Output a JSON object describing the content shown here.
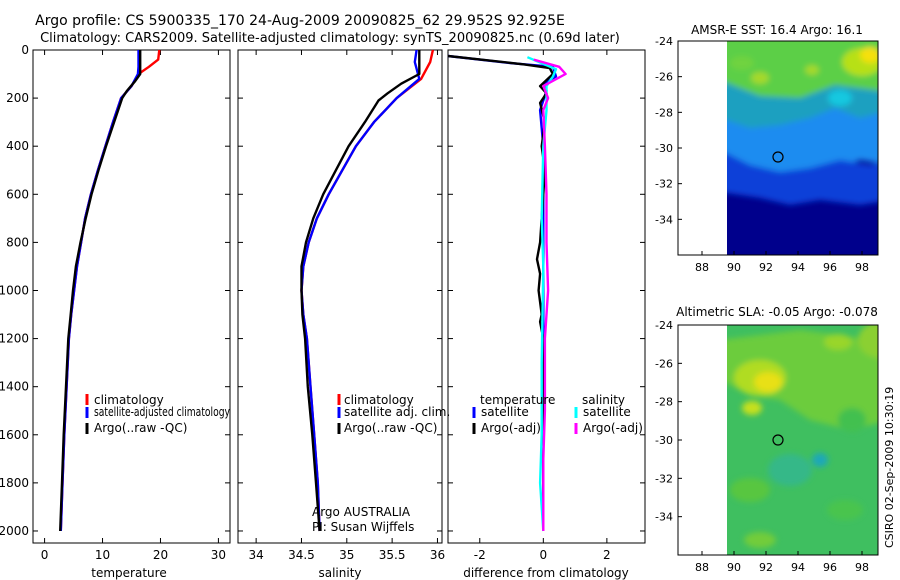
{
  "title_line1": "Argo profile: CS 5900335_170 24-Aug-2009 20090825_62 29.952S 92.925E",
  "title_line2": "Climatology: CARS2009. Satellite-adjusted climatology: synTS_20090825.nc (0.69d later)",
  "side_stamp": "CSIRO 02-Sep-2009 10:30:19",
  "colors": {
    "red": "#ff0000",
    "blue": "#0000ff",
    "black": "#000000",
    "cyan": "#00ffff",
    "magenta": "#ff00ff"
  },
  "chart_data": [
    {
      "type": "line",
      "name": "temperature",
      "xlabel": "temperature",
      "xlim": [
        -2,
        32
      ],
      "ylim": [
        2050,
        0
      ],
      "xticks": [
        "0",
        "10",
        "20",
        "30"
      ],
      "yticks": [
        "0",
        "200",
        "400",
        "600",
        "800",
        "1000",
        "1200",
        "1400",
        "1600",
        "1800",
        "2000"
      ],
      "legend": [
        "climatology",
        "satellite-adjusted climatology",
        "Argo(..raw -QC)"
      ],
      "series": [
        {
          "name": "climatology",
          "color": "#ff0000",
          "points": [
            [
              19.8,
              0
            ],
            [
              19.6,
              40
            ],
            [
              18,
              70
            ],
            [
              16.2,
              100
            ],
            [
              15,
              150
            ],
            [
              13.2,
              200
            ],
            [
              11.8,
              300
            ],
            [
              10.5,
              400
            ],
            [
              9.2,
              500
            ],
            [
              8,
              600
            ],
            [
              7,
              700
            ],
            [
              6.3,
              800
            ],
            [
              5.6,
              900
            ],
            [
              5.1,
              1000
            ],
            [
              4.6,
              1100
            ],
            [
              4.2,
              1200
            ],
            [
              3.8,
              1400
            ],
            [
              3.4,
              1600
            ],
            [
              3.1,
              1800
            ],
            [
              2.8,
              2000
            ]
          ]
        },
        {
          "name": "satellite-adjusted climatology",
          "color": "#0000ff",
          "points": [
            [
              16.2,
              0
            ],
            [
              16.2,
              70
            ],
            [
              16.1,
              100
            ],
            [
              15,
              150
            ],
            [
              13.2,
              200
            ],
            [
              11.8,
              300
            ],
            [
              10.5,
              400
            ],
            [
              9.2,
              500
            ],
            [
              8,
              600
            ],
            [
              7,
              700
            ],
            [
              6.3,
              800
            ],
            [
              5.6,
              900
            ],
            [
              5.1,
              1000
            ],
            [
              4.6,
              1100
            ],
            [
              4.2,
              1200
            ],
            [
              3.8,
              1400
            ],
            [
              3.4,
              1600
            ],
            [
              3.1,
              1800
            ],
            [
              2.8,
              2000
            ]
          ]
        },
        {
          "name": "Argo(..raw -QC)",
          "color": "#000000",
          "points": [
            [
              16.5,
              0
            ],
            [
              16.5,
              100
            ],
            [
              15.6,
              130
            ],
            [
              14.2,
              170
            ],
            [
              13.4,
              200
            ],
            [
              12,
              300
            ],
            [
              10.6,
              400
            ],
            [
              9.3,
              500
            ],
            [
              8.1,
              600
            ],
            [
              7.1,
              700
            ],
            [
              6.2,
              800
            ],
            [
              5.4,
              900
            ],
            [
              4.9,
              1000
            ],
            [
              4.5,
              1100
            ],
            [
              4.1,
              1200
            ],
            [
              3.7,
              1400
            ],
            [
              3.3,
              1600
            ],
            [
              3,
              1800
            ],
            [
              2.7,
              2000
            ]
          ]
        }
      ]
    },
    {
      "type": "line",
      "name": "salinity",
      "xlabel": "salinity",
      "xlim": [
        33.8,
        36.05
      ],
      "ylim": [
        2050,
        0
      ],
      "xticks": [
        "34",
        "34.5",
        "35",
        "35.5",
        "36"
      ],
      "legend": [
        "climatology",
        "satellite adj. clim.",
        "Argo(..raw -QC)"
      ],
      "annotations": [
        "Argo AUSTRALIA",
        "PI: Susan Wijffels"
      ],
      "series": [
        {
          "name": "climatology",
          "color": "#ff0000",
          "points": [
            [
              35.95,
              0
            ],
            [
              35.92,
              50
            ],
            [
              35.82,
              120
            ],
            [
              35.55,
              200
            ],
            [
              35.3,
              300
            ],
            [
              35.1,
              400
            ],
            [
              34.95,
              500
            ],
            [
              34.8,
              600
            ],
            [
              34.67,
              700
            ],
            [
              34.58,
              800
            ],
            [
              34.52,
              900
            ],
            [
              34.5,
              1000
            ],
            [
              34.52,
              1100
            ],
            [
              34.56,
              1200
            ],
            [
              34.6,
              1400
            ],
            [
              34.64,
              1600
            ],
            [
              34.68,
              1800
            ],
            [
              34.7,
              2000
            ]
          ]
        },
        {
          "name": "satellite adj. clim.",
          "color": "#0000ff",
          "points": [
            [
              35.77,
              0
            ],
            [
              35.75,
              50
            ],
            [
              35.8,
              120
            ],
            [
              35.55,
              200
            ],
            [
              35.3,
              300
            ],
            [
              35.1,
              400
            ],
            [
              34.95,
              500
            ],
            [
              34.8,
              600
            ],
            [
              34.67,
              700
            ],
            [
              34.58,
              800
            ],
            [
              34.52,
              900
            ],
            [
              34.5,
              1000
            ],
            [
              34.52,
              1100
            ],
            [
              34.56,
              1200
            ],
            [
              34.6,
              1400
            ],
            [
              34.64,
              1600
            ],
            [
              34.68,
              1800
            ],
            [
              34.7,
              2000
            ]
          ]
        },
        {
          "name": "Argo(..raw -QC)",
          "color": "#000000",
          "points": [
            [
              35.8,
              0
            ],
            [
              35.8,
              100
            ],
            [
              35.6,
              140
            ],
            [
              35.45,
              180
            ],
            [
              35.35,
              210
            ],
            [
              35.2,
              300
            ],
            [
              35.02,
              400
            ],
            [
              34.88,
              500
            ],
            [
              34.74,
              600
            ],
            [
              34.63,
              700
            ],
            [
              34.55,
              800
            ],
            [
              34.5,
              900
            ],
            [
              34.5,
              1000
            ],
            [
              34.51,
              1100
            ],
            [
              34.54,
              1200
            ],
            [
              34.57,
              1400
            ],
            [
              34.62,
              1600
            ],
            [
              34.66,
              1800
            ],
            [
              34.7,
              2000
            ]
          ]
        }
      ]
    },
    {
      "type": "line",
      "name": "difference",
      "xlabel": "difference from climatology",
      "xlim": [
        -3,
        3.2
      ],
      "ylim": [
        2050,
        0
      ],
      "xticks": [
        "-2",
        "0",
        "2"
      ],
      "legend_headers": [
        "temperature",
        "salinity"
      ],
      "legend": [
        "satellite",
        "Argo(-adj)",
        "satellite",
        "Argo(-adj)"
      ],
      "series": [
        {
          "name": "temperature satellite",
          "color": "#0000ff",
          "points": [
            [
              -3,
              25
            ],
            [
              -1,
              55
            ],
            [
              0.3,
              70
            ],
            [
              0.4,
              110
            ],
            [
              0,
              140
            ],
            [
              0.1,
              170
            ],
            [
              -0.1,
              250
            ],
            [
              0,
              400
            ],
            [
              0,
              1000
            ],
            [
              0,
              2000
            ]
          ]
        },
        {
          "name": "temperature Argo(-adj)",
          "color": "#000000",
          "points": [
            [
              -3,
              25
            ],
            [
              -0.6,
              60
            ],
            [
              0.2,
              75
            ],
            [
              0.3,
              100
            ],
            [
              -0.1,
              150
            ],
            [
              0.1,
              180
            ],
            [
              -0.1,
              220
            ],
            [
              0.05,
              300
            ],
            [
              -0.05,
              400
            ],
            [
              0.05,
              500
            ],
            [
              -0.05,
              700
            ],
            [
              -0.1,
              800
            ],
            [
              -0.2,
              870
            ],
            [
              -0.1,
              930
            ],
            [
              -0.15,
              1000
            ],
            [
              -0.05,
              1100
            ],
            [
              -0.1,
              1130
            ],
            [
              0,
              1200
            ],
            [
              0,
              2000
            ]
          ]
        },
        {
          "name": "salinity satellite",
          "color": "#00ffff",
          "points": [
            [
              -0.5,
              30
            ],
            [
              0.4,
              80
            ],
            [
              0.3,
              110
            ],
            [
              0.1,
              150
            ],
            [
              0.1,
              250
            ],
            [
              0,
              400
            ],
            [
              -0.05,
              700
            ],
            [
              0,
              900
            ],
            [
              -0.05,
              1300
            ],
            [
              -0.05,
              1600
            ],
            [
              -0.1,
              1800
            ],
            [
              0,
              2000
            ]
          ]
        },
        {
          "name": "salinity Argo(-adj)",
          "color": "#ff00ff",
          "points": [
            [
              -0.3,
              40
            ],
            [
              0.5,
              70
            ],
            [
              0.7,
              100
            ],
            [
              0,
              150
            ],
            [
              0.15,
              200
            ],
            [
              0,
              250
            ],
            [
              0.05,
              400
            ],
            [
              0.1,
              600
            ],
            [
              0.1,
              800
            ],
            [
              0.15,
              1000
            ],
            [
              0.05,
              1200
            ],
            [
              0.05,
              1500
            ],
            [
              0,
              1700
            ],
            [
              0,
              2000
            ]
          ]
        }
      ]
    },
    {
      "type": "heatmap",
      "name": "sst_map",
      "title": "AMSR-E SST: 16.4 Argo: 16.1",
      "xlim": [
        86.5,
        99
      ],
      "ylim": [
        -36,
        -24
      ],
      "xticks": [
        "88",
        "90",
        "92",
        "94",
        "96",
        "98"
      ],
      "yticks": [
        "-24",
        "-26",
        "-28",
        "-30",
        "-32",
        "-34"
      ],
      "marker": [
        92.925,
        -29.952
      ]
    },
    {
      "type": "heatmap",
      "name": "sla_map",
      "title": "Altimetric SLA: -0.05 Argo: -0.078",
      "xlim": [
        86.5,
        99
      ],
      "ylim": [
        -36,
        -24
      ],
      "xticks": [
        "88",
        "90",
        "92",
        "94",
        "96",
        "98"
      ],
      "yticks": [
        "-24",
        "-26",
        "-28",
        "-30",
        "-32",
        "-34"
      ],
      "marker": [
        92.925,
        -29.952
      ]
    }
  ]
}
